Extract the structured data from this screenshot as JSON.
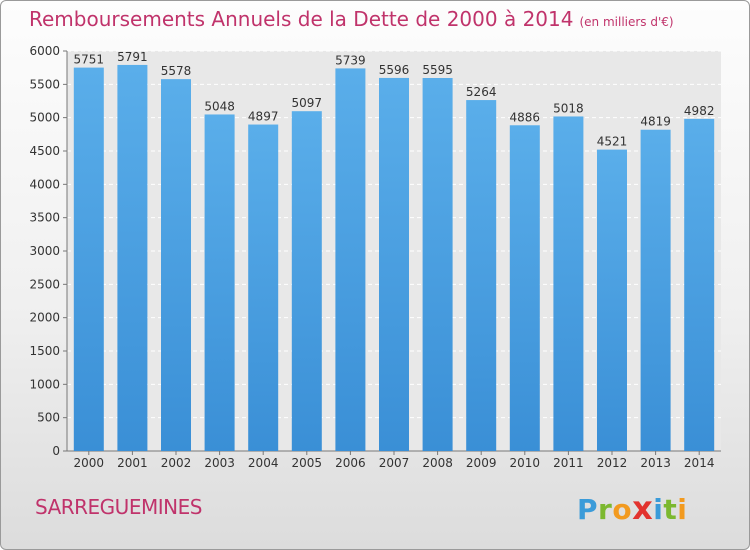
{
  "header": {
    "title": "Remboursements Annuels de la Dette de 2000 à 2014",
    "subtitle": "(en milliers d'€)"
  },
  "footer": {
    "city": "SARREGUEMINES",
    "logo_letters": [
      "P",
      "r",
      "o",
      "x",
      "i",
      "t",
      "i"
    ],
    "logo_colors": [
      "#3a9bd9",
      "#7cb82f",
      "#f29a1f",
      "#e2332e",
      "#3a9bd9",
      "#7cb82f",
      "#f29a1f"
    ]
  },
  "chart_data": {
    "type": "bar",
    "categories": [
      "2000",
      "2001",
      "2002",
      "2003",
      "2004",
      "2005",
      "2006",
      "2007",
      "2008",
      "2009",
      "2010",
      "2011",
      "2012",
      "2013",
      "2014"
    ],
    "values": [
      5751,
      5791,
      5578,
      5048,
      4897,
      5097,
      5739,
      5596,
      5595,
      5264,
      4886,
      5018,
      4521,
      4819,
      4982
    ],
    "ylim": [
      0,
      6000
    ],
    "yticks": [
      0,
      500,
      1000,
      1500,
      2000,
      2500,
      3000,
      3500,
      4000,
      4500,
      5000,
      5500,
      6000
    ],
    "grid": true,
    "bar_color": "#3a8fd6",
    "bar_color_light": "#5aaeea"
  }
}
